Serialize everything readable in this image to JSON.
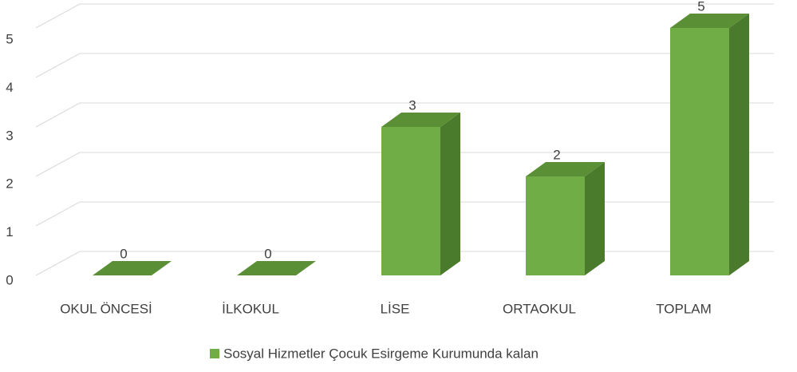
{
  "chart_data": {
    "type": "bar3d",
    "categories": [
      "OKUL ÖNCESİ",
      "İLKOKUL",
      "LİSE",
      "ORTAOKUL",
      "TOPLAM"
    ],
    "series": [
      {
        "name": "Sosyal Hizmetler Çocuk Esirgeme Kurumunda kalan",
        "color": "#70ad47",
        "values": [
          0,
          0,
          3,
          2,
          5
        ]
      }
    ],
    "ylim": [
      0,
      5
    ],
    "yticks": [
      0,
      1,
      2,
      3,
      4,
      5
    ],
    "grid": true,
    "legend": "bottom"
  }
}
